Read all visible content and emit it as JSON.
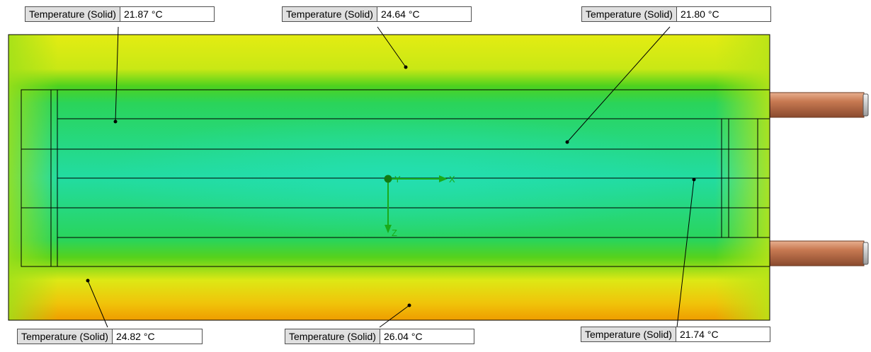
{
  "axes": {
    "x_label": "X",
    "y_label": "Y",
    "z_label": "Z"
  },
  "probes": [
    {
      "name": "Temperature (Solid)",
      "value": "21.87 °C"
    },
    {
      "name": "Temperature (Solid)",
      "value": "24.64 °C"
    },
    {
      "name": "Temperature (Solid)",
      "value": "21.80 °C"
    },
    {
      "name": "Temperature (Solid)",
      "value": "24.82 °C"
    },
    {
      "name": "Temperature (Solid)",
      "value": "26.04 °C"
    },
    {
      "name": "Temperature (Solid)",
      "value": "21.74 °C"
    }
  ],
  "colors": {
    "field_cold": "#22d99a",
    "field_mid": "#33cc1a",
    "field_warm": "#e6ee10",
    "field_hot": "#f0a000",
    "pipe": "#c07048",
    "axis": "#1aaa1a"
  }
}
